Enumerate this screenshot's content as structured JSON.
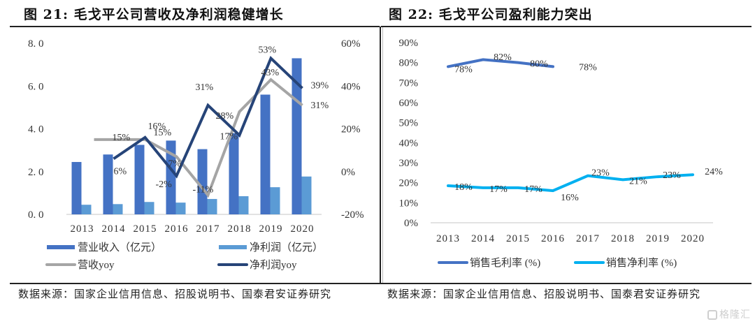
{
  "left_panel": {
    "title": "图 21:   毛戈平公司营收及净利润稳健增长",
    "source": "数据来源：国家企业信用信息、招股说明书、国泰君安证券研究"
  },
  "right_panel": {
    "title": "图 22:   毛戈平公司盈利能力突出",
    "source": "数据来源：国家企业信用信息、招股说明书、国泰君安证券研究"
  },
  "watermark": "格隆汇",
  "colors": {
    "revenue_bar": "#4472C4",
    "profit_bar": "#5B9BD5",
    "revenue_yoy": "#A5A5A5",
    "profit_yoy": "#264478",
    "gross_margin": "#4472C4",
    "net_margin": "#00B0F0",
    "axis": "#d9d9d9"
  },
  "chart_data": [
    {
      "type": "bar",
      "title": "毛戈平公司营收及净利润稳健增长",
      "categories": [
        "2013",
        "2014",
        "2015",
        "2016",
        "2017",
        "2018",
        "2019",
        "2020"
      ],
      "ylim": [
        0,
        8
      ],
      "y_ticks": [
        "0. 0",
        "2. 0",
        "4. 0",
        "6. 0",
        "8. 0"
      ],
      "y2lim": [
        -20,
        60
      ],
      "y2_ticks": [
        "-20%",
        "0%",
        "20%",
        "40%",
        "60%"
      ],
      "series": [
        {
          "name": "营业收入（亿元）",
          "kind": "bar",
          "axis": "left",
          "values": [
            2.45,
            2.8,
            3.25,
            3.45,
            3.05,
            3.8,
            5.6,
            7.3
          ]
        },
        {
          "name": "净利润（亿元）",
          "kind": "bar",
          "axis": "left",
          "values": [
            0.45,
            0.48,
            0.58,
            0.55,
            0.72,
            0.85,
            1.27,
            1.77
          ]
        },
        {
          "name": "营收yoy",
          "kind": "line",
          "axis": "right",
          "values": [
            null,
            15,
            15,
            7,
            -11,
            28,
            43,
            31
          ],
          "labels": [
            "",
            "15%",
            "15%",
            "7%",
            "-11%",
            "28%",
            "43%",
            "31%"
          ]
        },
        {
          "name": "净利润yoy",
          "kind": "line",
          "axis": "right",
          "values": [
            null,
            6,
            16,
            -2,
            31,
            17,
            53,
            39
          ],
          "labels": [
            "",
            "6%",
            "16%",
            "-2%",
            "31%",
            "17%",
            "53%",
            "39%"
          ]
        }
      ],
      "legend": [
        "营业收入（亿元）",
        "净利润（亿元）",
        "营收yoy",
        "净利润yoy"
      ],
      "legend_position": "bottom"
    },
    {
      "type": "line",
      "title": "毛戈平公司盈利能力突出",
      "categories": [
        "2013",
        "2014",
        "2015",
        "2016",
        "2017",
        "2018",
        "2019",
        "2020"
      ],
      "ylim": [
        0,
        90
      ],
      "y_ticks": [
        "0%",
        "10%",
        "20%",
        "30%",
        "40%",
        "50%",
        "60%",
        "70%",
        "80%",
        "90%"
      ],
      "series": [
        {
          "name": "销售毛利率 (%)",
          "values": [
            78,
            81.5,
            80,
            78
          ],
          "labels": [
            "78%",
            "82%",
            "80%",
            "78%"
          ]
        },
        {
          "name": "销售净利率 (%)",
          "values": [
            18.5,
            17.5,
            17.5,
            16,
            23.5,
            21.5,
            23,
            24
          ],
          "labels": [
            "18%",
            "17%",
            "17%",
            "16%",
            "23%",
            "21%",
            "23%",
            "24%"
          ]
        }
      ],
      "legend": [
        "销售毛利率 (%)",
        "销售净利率 (%)"
      ],
      "legend_position": "bottom"
    }
  ]
}
